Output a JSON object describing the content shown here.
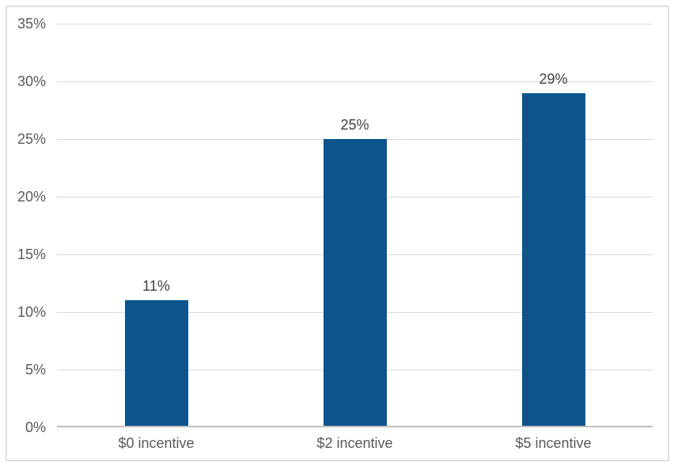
{
  "chart_data": {
    "type": "bar",
    "title": "",
    "xlabel": "",
    "ylabel": "",
    "categories": [
      "$0 incentive",
      "$2 incentive",
      "$5 incentive"
    ],
    "values": [
      11,
      25,
      29
    ],
    "data_labels": [
      "11%",
      "25%",
      "29%"
    ],
    "ylim": [
      0,
      35
    ],
    "ytick_step": 5,
    "ytick_labels": [
      "0%",
      "5%",
      "10%",
      "15%",
      "20%",
      "25%",
      "30%",
      "35%"
    ],
    "grid": true,
    "legend": false,
    "colors": {
      "bar": "#0b548c",
      "gridline": "#d9d9d9",
      "axis_line": "#bfbfbf",
      "tick_label": "#595959",
      "data_label": "#404040",
      "frame_border": "#e0e0e0",
      "background": "#ffffff"
    }
  }
}
